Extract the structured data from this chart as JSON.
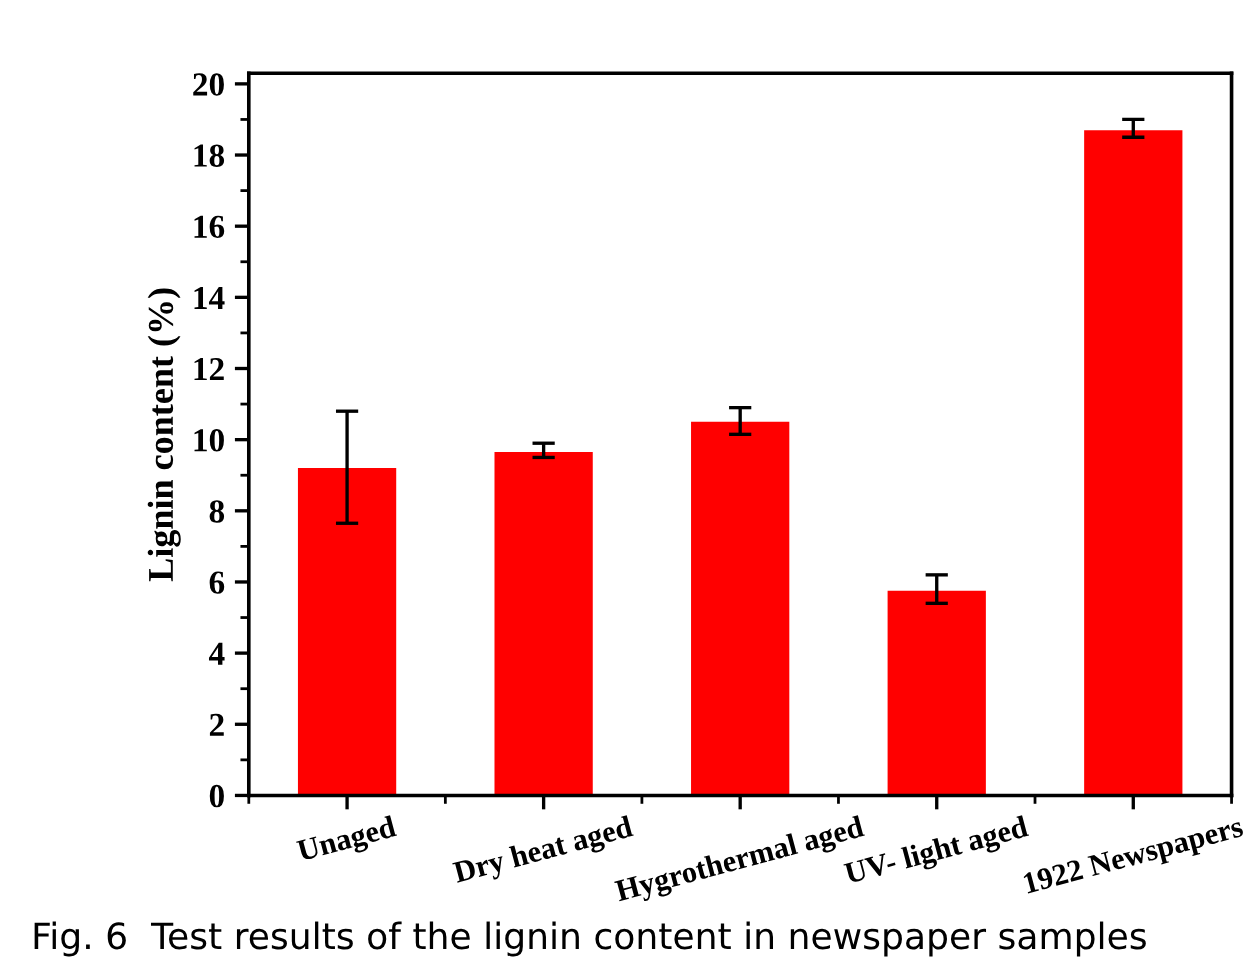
{
  "chart_data": {
    "type": "bar",
    "ylabel": "Lignin content (%)",
    "categories": [
      "Unaged",
      "Dry heat aged",
      "Hygrothermal aged",
      "UV- light aged",
      "1922 Newspapers"
    ],
    "values": [
      9.2,
      9.65,
      10.5,
      5.75,
      18.7
    ],
    "errors": [
      [
        7.65,
        10.8
      ],
      [
        9.5,
        9.9
      ],
      [
        10.15,
        10.9
      ],
      [
        5.4,
        6.2
      ],
      [
        18.5,
        19.0
      ]
    ],
    "color": "#ff0000",
    "ylim": [
      0,
      20.3
    ],
    "yticks": [
      0,
      2,
      4,
      6,
      8,
      10,
      12,
      14,
      16,
      18,
      20
    ],
    "grid": false,
    "legend": false,
    "annotations": [
      "Fig. 6  Test results of the lignin content in newspaper samples"
    ]
  }
}
